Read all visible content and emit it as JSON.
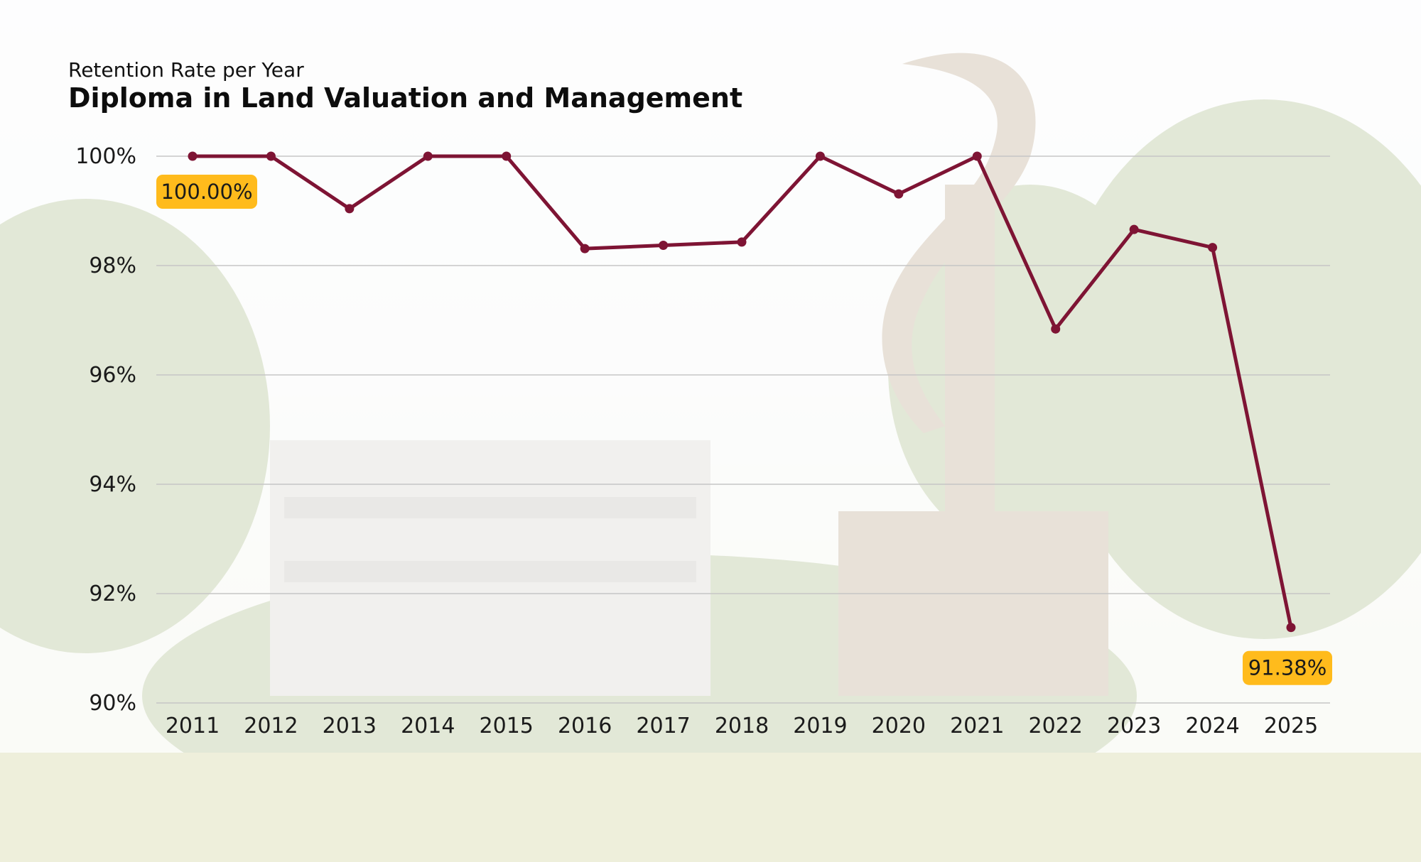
{
  "header": {
    "subtitle": "Retention Rate per Year",
    "title": "Diploma in Land Valuation and Management"
  },
  "colors": {
    "line": "#7e1434",
    "callout": "#ffbb1c",
    "grid": "#c6c6c6",
    "text": "#1a1a1a"
  },
  "chart_data": {
    "type": "line",
    "title": "Diploma in Land Valuation and Management",
    "subtitle": "Retention Rate per Year",
    "xlabel": "",
    "ylabel": "",
    "categories": [
      "2011",
      "2012",
      "2013",
      "2014",
      "2015",
      "2016",
      "2017",
      "2018",
      "2019",
      "2020",
      "2021",
      "2022",
      "2023",
      "2024",
      "2025"
    ],
    "series": [
      {
        "name": "Retention Rate",
        "values": [
          100.0,
          100.0,
          99.04,
          100.0,
          100.0,
          98.31,
          98.37,
          98.43,
          100.0,
          99.31,
          100.0,
          96.84,
          98.66,
          98.33,
          91.38
        ]
      }
    ],
    "ylim": [
      90,
      100
    ],
    "y_ticks": [
      "90%",
      "92%",
      "94%",
      "96%",
      "98%",
      "100%"
    ],
    "grid": true,
    "annotations": [
      {
        "category": "2011",
        "text": "100.00%"
      },
      {
        "category": "2025",
        "text": "91.38%"
      }
    ]
  }
}
